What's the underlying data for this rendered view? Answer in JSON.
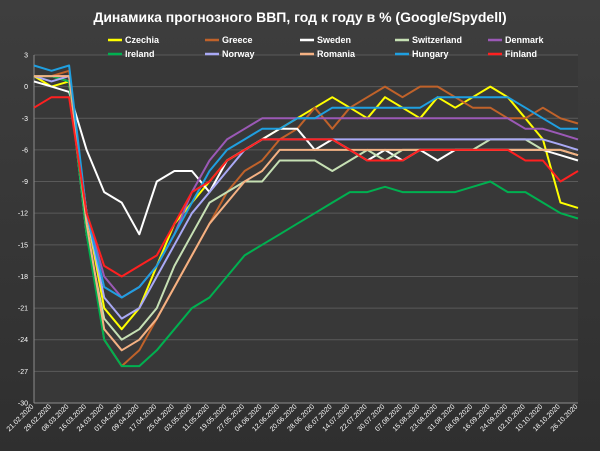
{
  "chart_data": {
    "type": "line",
    "title": "Динамика прогнозного ВВП, год к году в % (Google/Spydell)",
    "xlabel": "",
    "ylabel": "",
    "ylim": [
      -30,
      3
    ],
    "yticks": [
      3,
      0,
      -3,
      -6,
      -9,
      -12,
      -15,
      -18,
      -21,
      -24,
      -27,
      -30
    ],
    "x_tick_labels": [
      "21.02.2020",
      "29.02.2020",
      "08.03.2020",
      "16.03.2020",
      "24.03.2020",
      "01.04.2020",
      "09.04.2020",
      "17.04.2020",
      "25.04.2020",
      "03.05.2020",
      "11.05.2020",
      "19.05.2020",
      "27.05.2020",
      "04.06.2020",
      "12.06.2020",
      "20.06.2020",
      "28.06.2020",
      "06.07.2020",
      "14.07.2020",
      "22.07.2020",
      "30.07.2020",
      "07.08.2020",
      "15.08.2020",
      "23.08.2020",
      "31.08.2020",
      "08.09.2020",
      "16.09.2020",
      "24.09.2020",
      "02.10.2020",
      "10.10.2020",
      "18.10.2020",
      "26.10.2020"
    ],
    "grid": true,
    "legend_position": "top",
    "x": [
      "21.02.2020",
      "29.02.2020",
      "08.03.2020",
      "16.03.2020",
      "24.03.2020",
      "01.04.2020",
      "09.04.2020",
      "17.04.2020",
      "25.04.2020",
      "03.05.2020",
      "11.05.2020",
      "19.05.2020",
      "27.05.2020",
      "04.06.2020",
      "12.06.2020",
      "20.06.2020",
      "28.06.2020",
      "06.07.2020",
      "14.07.2020",
      "22.07.2020",
      "30.07.2020",
      "07.08.2020",
      "15.08.2020",
      "23.08.2020",
      "31.08.2020",
      "08.09.2020",
      "16.09.2020",
      "24.09.2020",
      "02.10.2020",
      "10.10.2020",
      "18.10.2020",
      "26.10.2020"
    ],
    "series": [
      {
        "name": "Czechia",
        "color": "#ffff00",
        "values": [
          1,
          0,
          0.5,
          -12,
          -21,
          -23,
          -21,
          -17,
          -13,
          -11,
          -9,
          -7,
          -6,
          -5,
          -4,
          -3,
          -2,
          -1,
          -2,
          -3,
          -1,
          -2,
          -3,
          -1,
          -2,
          -1,
          0,
          -1,
          -3,
          -5,
          -11,
          -11.5
        ]
      },
      {
        "name": "Greece",
        "color": "#c0622a",
        "values": [
          1,
          1,
          1.5,
          -13,
          -24,
          -26.5,
          -25,
          -22,
          -19,
          -16,
          -13,
          -10,
          -8,
          -7,
          -5,
          -4,
          -2,
          -4,
          -2,
          -1,
          0,
          -1,
          0,
          0,
          -1,
          -2,
          -2,
          -3,
          -3,
          -2,
          -3,
          -3.5
        ]
      },
      {
        "name": "Sweden",
        "color": "#ffffff",
        "values": [
          0.5,
          0,
          -0.5,
          -6,
          -10,
          -11,
          -14,
          -9,
          -8,
          -8,
          -10,
          -7,
          -6,
          -5,
          -4,
          -4,
          -6,
          -5,
          -6,
          -7,
          -6,
          -7,
          -6,
          -7,
          -6,
          -6,
          -6,
          -6,
          -6,
          -6,
          -6.5,
          -7
        ]
      },
      {
        "name": "Switzerland",
        "color": "#c6e0b4",
        "values": [
          1,
          1,
          0.5,
          -14,
          -22,
          -24,
          -23,
          -21,
          -17,
          -14,
          -11,
          -10,
          -9,
          -9,
          -7,
          -7,
          -7,
          -8,
          -7,
          -6,
          -7,
          -6,
          -6,
          -6,
          -6,
          -6,
          -5,
          -5,
          -5,
          -6,
          -6,
          -6.5
        ]
      },
      {
        "name": "Denmark",
        "color": "#9b59b6",
        "values": [
          1,
          1,
          1,
          -12,
          -18,
          -20,
          -19,
          -17,
          -14,
          -10,
          -7,
          -5,
          -4,
          -3,
          -3,
          -3,
          -3,
          -3,
          -3,
          -3,
          -3,
          -3,
          -3,
          -3,
          -3,
          -3,
          -3,
          -3,
          -4,
          -4,
          -4.5,
          -5
        ]
      },
      {
        "name": "Ireland",
        "color": "#00b050",
        "values": [
          1,
          1,
          0.5,
          -14,
          -24,
          -26.5,
          -26.5,
          -25,
          -23,
          -21,
          -20,
          -18,
          -16,
          -15,
          -14,
          -13,
          -12,
          -11,
          -10,
          -10,
          -9.5,
          -10,
          -10,
          -10,
          -10,
          -9.5,
          -9,
          -10,
          -10,
          -11,
          -12,
          -12.5
        ]
      },
      {
        "name": "Norway",
        "color": "#a9a9f5",
        "values": [
          1,
          0.5,
          1,
          -12,
          -20,
          -22,
          -21,
          -18,
          -15,
          -12,
          -10,
          -8,
          -6,
          -5,
          -5,
          -5,
          -5,
          -5,
          -5,
          -5,
          -5,
          -5,
          -5,
          -5,
          -5,
          -5,
          -5,
          -5,
          -5,
          -5,
          -5.5,
          -6
        ]
      },
      {
        "name": "Romania",
        "color": "#f4b183",
        "values": [
          1,
          1,
          1,
          -13,
          -23,
          -25,
          -24,
          -22,
          -19,
          -16,
          -13,
          -11,
          -9,
          -8,
          -6,
          -6,
          -6,
          -6,
          -6,
          -6,
          -6,
          -6,
          -6,
          -6,
          -6,
          -6,
          -6,
          -6,
          -6,
          -6,
          -6,
          -6.5
        ]
      },
      {
        "name": "Hungary",
        "color": "#1f9fe0",
        "values": [
          2,
          1.5,
          2,
          -12,
          -19,
          -20,
          -19,
          -17,
          -14,
          -11,
          -8,
          -6,
          -5,
          -4,
          -4,
          -3,
          -3,
          -2,
          -2,
          -2,
          -2,
          -2,
          -2,
          -1,
          -1,
          -1,
          -1,
          -1,
          -2,
          -3,
          -4,
          -4
        ]
      },
      {
        "name": "Finland",
        "color": "#ff2020",
        "values": [
          -2,
          -1,
          -1,
          -12,
          -17,
          -18,
          -17,
          -16,
          -13,
          -10,
          -9,
          -7,
          -6,
          -5,
          -5,
          -5,
          -5,
          -5,
          -6,
          -7,
          -7,
          -7,
          -6,
          -6,
          -6,
          -6,
          -6,
          -6,
          -7,
          -7,
          -9,
          -8
        ]
      }
    ]
  }
}
